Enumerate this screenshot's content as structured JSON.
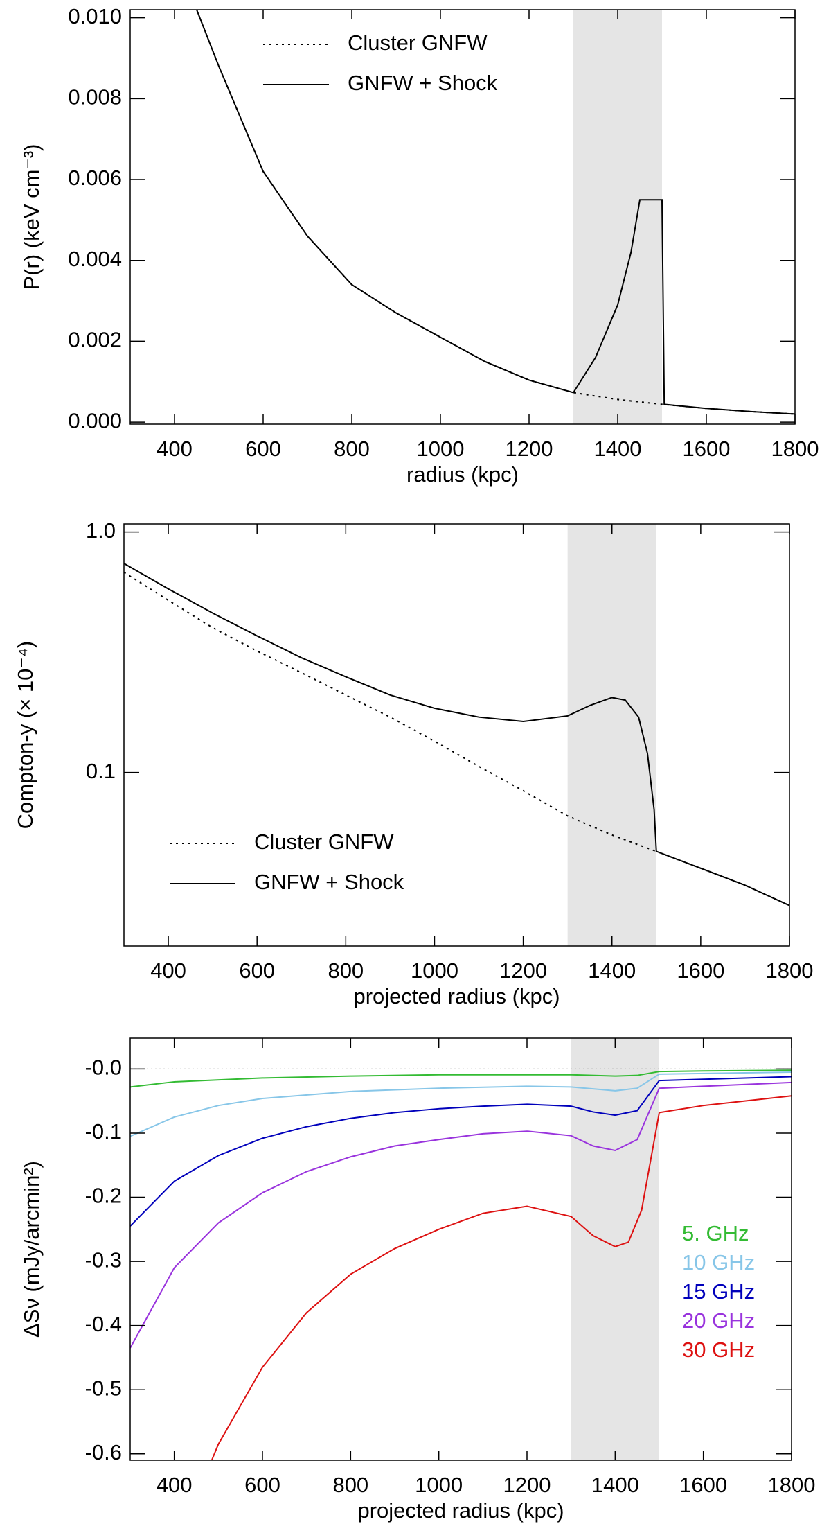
{
  "chart_data": [
    {
      "type": "line",
      "x_label": "radius (kpc)",
      "y_label": "P(r) (keV cm⁻³)",
      "xlim": [
        300,
        1800
      ],
      "xticks": [
        400,
        600,
        800,
        1000,
        1200,
        1400,
        1600,
        1800
      ],
      "ylim": [
        -5e-05,
        0.0102
      ],
      "yticks": [
        {
          "value": 0,
          "label": "0.000"
        },
        0.002,
        0.004,
        0.006,
        0.008,
        {
          "value": 0.01,
          "label": "0.010"
        }
      ],
      "log_y": false,
      "legend": "upper center",
      "shade": [
        1300,
        1500
      ],
      "shade_color": "#e5e5e5",
      "series": [
        {
          "name": "Cluster GNFW",
          "line_style": "dotted",
          "color": "#000000",
          "x": [
            450,
            500,
            600,
            700,
            800,
            900,
            1000,
            1100,
            1200,
            1300,
            1400,
            1500,
            1600,
            1700,
            1800
          ],
          "values": [
            0.0102,
            0.0088,
            0.0062,
            0.0046,
            0.0034,
            0.0027,
            0.0021,
            0.0015,
            0.00104,
            0.00073,
            0.00056,
            0.00044,
            0.00034,
            0.00026,
            0.0002
          ]
        },
        {
          "name": "GNFW + Shock",
          "line_style": "solid",
          "color": "#000000",
          "x": [
            450,
            500,
            600,
            700,
            800,
            900,
            1000,
            1100,
            1200,
            1300,
            1350,
            1400,
            1430,
            1450,
            1500,
            1505,
            1600,
            1700,
            1800
          ],
          "values": [
            0.0102,
            0.0088,
            0.0062,
            0.0046,
            0.0034,
            0.0027,
            0.0021,
            0.0015,
            0.00104,
            0.00073,
            0.0016,
            0.0029,
            0.0042,
            0.0055,
            0.0055,
            0.00044,
            0.00034,
            0.00026,
            0.0002
          ]
        }
      ]
    },
    {
      "type": "line",
      "x_label": "projected radius (kpc)",
      "y_label": "Compton-y (× 10⁻⁴)",
      "xlim": [
        300,
        1800
      ],
      "xticks": [
        400,
        600,
        800,
        1000,
        1200,
        1400,
        1600,
        1800
      ],
      "ylim": [
        0.019,
        1.08
      ],
      "yticks": [
        0.1,
        {
          "value": 1,
          "label": "1.0"
        }
      ],
      "log_y": true,
      "legend": "lower left",
      "shade": [
        1300,
        1500
      ],
      "shade_color": "#e5e5e5",
      "series": [
        {
          "name": "Cluster GNFW",
          "line_style": "dotted",
          "color": "#000000",
          "x": [
            300,
            400,
            500,
            600,
            700,
            800,
            900,
            1000,
            1100,
            1200,
            1300,
            1400,
            1500,
            1600,
            1700,
            1800
          ],
          "values": [
            0.68,
            0.52,
            0.4,
            0.32,
            0.26,
            0.21,
            0.17,
            0.135,
            0.106,
            0.084,
            0.066,
            0.055,
            0.047,
            0.04,
            0.034,
            0.028
          ]
        },
        {
          "name": "GNFW + Shock",
          "line_style": "solid",
          "color": "#000000",
          "x": [
            300,
            400,
            500,
            600,
            700,
            800,
            900,
            1000,
            1100,
            1200,
            1300,
            1350,
            1400,
            1430,
            1460,
            1480,
            1495,
            1500,
            1600,
            1700,
            1800
          ],
          "values": [
            0.74,
            0.58,
            0.46,
            0.37,
            0.3,
            0.25,
            0.21,
            0.185,
            0.17,
            0.163,
            0.172,
            0.19,
            0.205,
            0.2,
            0.17,
            0.12,
            0.07,
            0.047,
            0.04,
            0.034,
            0.028
          ]
        }
      ]
    },
    {
      "type": "line",
      "x_label": "projected radius (kpc)",
      "y_label": "ΔSν (mJy/arcmin²)",
      "xlim": [
        300,
        1800
      ],
      "xticks": [
        400,
        600,
        800,
        1000,
        1200,
        1400,
        1600,
        1800
      ],
      "ylim": [
        -0.61,
        0.048
      ],
      "yticks": [
        {
          "value": -0.6,
          "label": "-0.6"
        },
        {
          "value": -0.5,
          "label": "-0.5"
        },
        {
          "value": -0.4,
          "label": "-0.4"
        },
        {
          "value": -0.3,
          "label": "-0.3"
        },
        {
          "value": -0.2,
          "label": "-0.2"
        },
        {
          "value": -0.1,
          "label": "-0.1"
        },
        {
          "value": 0,
          "label": "-0.0"
        }
      ],
      "log_y": false,
      "legend": "lower right",
      "shade": [
        1300,
        1500
      ],
      "shade_color": "#e5e5e5",
      "hline": 0,
      "series": [
        {
          "name": "5. GHz",
          "line_style": "solid",
          "color": "#33bb33",
          "x": [
            300,
            400,
            600,
            800,
            1000,
            1200,
            1300,
            1400,
            1450,
            1500,
            1600,
            1800
          ],
          "values": [
            -0.028,
            -0.02,
            -0.014,
            -0.011,
            -0.009,
            -0.009,
            -0.009,
            -0.011,
            -0.01,
            -0.004,
            -0.003,
            -0.002
          ]
        },
        {
          "name": "10 GHz",
          "line_style": "solid",
          "color": "#87c6e8",
          "x": [
            300,
            400,
            500,
            600,
            800,
            1000,
            1200,
            1300,
            1400,
            1450,
            1500,
            1600,
            1800
          ],
          "values": [
            -0.105,
            -0.075,
            -0.057,
            -0.046,
            -0.035,
            -0.03,
            -0.027,
            -0.028,
            -0.034,
            -0.03,
            -0.008,
            -0.007,
            -0.005
          ]
        },
        {
          "name": "15 GHz",
          "line_style": "solid",
          "color": "#0000bb",
          "x": [
            300,
            400,
            500,
            600,
            700,
            800,
            900,
            1000,
            1100,
            1200,
            1300,
            1350,
            1400,
            1450,
            1500,
            1600,
            1800
          ],
          "values": [
            -0.245,
            -0.175,
            -0.135,
            -0.108,
            -0.09,
            -0.077,
            -0.068,
            -0.062,
            -0.058,
            -0.055,
            -0.058,
            -0.067,
            -0.072,
            -0.065,
            -0.018,
            -0.016,
            -0.012
          ]
        },
        {
          "name": "20 GHz",
          "line_style": "solid",
          "color": "#9933dd",
          "x": [
            300,
            400,
            500,
            600,
            700,
            800,
            900,
            1000,
            1100,
            1200,
            1300,
            1350,
            1400,
            1450,
            1500,
            1600,
            1800
          ],
          "values": [
            -0.435,
            -0.31,
            -0.24,
            -0.193,
            -0.16,
            -0.137,
            -0.12,
            -0.11,
            -0.101,
            -0.097,
            -0.104,
            -0.12,
            -0.127,
            -0.11,
            -0.03,
            -0.027,
            -0.021
          ]
        },
        {
          "name": "30 GHz",
          "line_style": "solid",
          "color": "#dd1111",
          "x": [
            485,
            500,
            600,
            700,
            800,
            900,
            1000,
            1100,
            1200,
            1300,
            1350,
            1400,
            1430,
            1460,
            1500,
            1600,
            1800
          ],
          "values": [
            -0.61,
            -0.585,
            -0.465,
            -0.38,
            -0.32,
            -0.28,
            -0.25,
            -0.225,
            -0.214,
            -0.23,
            -0.26,
            -0.277,
            -0.27,
            -0.22,
            -0.068,
            -0.057,
            -0.042
          ]
        }
      ]
    }
  ]
}
